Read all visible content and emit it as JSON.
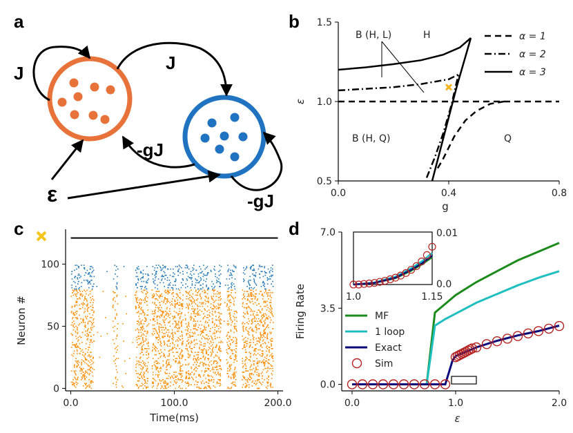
{
  "panels": {
    "a": {
      "letter": "a",
      "labels": {
        "j_self": "J",
        "j_cross": "J",
        "gj_cross": "-gJ",
        "gj_self": "-gJ",
        "epsilon": "ε"
      },
      "colors": {
        "excitatory": "#e8733a",
        "inhibitory": "#1f73c0"
      }
    },
    "b": {
      "letter": "b",
      "regions": {
        "bhl": "B (H, L)",
        "h": "H",
        "bhq": "B (H, Q)",
        "q": "Q"
      },
      "marker_color": "#f5b324"
    },
    "c": {
      "letter": "c",
      "colors": {
        "exc": "#ff8c00",
        "inh": "#1f77b4",
        "marker": "#f5c518"
      }
    },
    "d": {
      "letter": "d",
      "inset": {
        "xticks": [
          "1.0",
          "1.15"
        ],
        "yticks": [
          "0.01",
          "0.0"
        ]
      }
    }
  },
  "chart_data": [
    {
      "id": "panel-b",
      "type": "line",
      "xlabel": "g",
      "ylabel": "ε",
      "xlim": [
        0,
        0.8
      ],
      "ylim": [
        0.5,
        1.5
      ],
      "xticks": [
        0.0,
        0.4,
        0.8
      ],
      "xtick_labels": [
        "0.0",
        "0.4",
        "0.8"
      ],
      "yticks": [
        0.5,
        1.0,
        1.5
      ],
      "ytick_labels": [
        "0.5",
        "1.0",
        "1.5"
      ],
      "legend": [
        {
          "label": "α = 1",
          "style": "dashed"
        },
        {
          "label": "α = 2",
          "style": "dashdot"
        },
        {
          "label": "α = 3",
          "style": "solid"
        }
      ],
      "series": [
        {
          "name": "alpha1-upper",
          "style": "dashed",
          "x": [
            0,
            0.8
          ],
          "y": [
            1.0,
            1.0
          ]
        },
        {
          "name": "alpha1-lower",
          "style": "dashed",
          "x": [
            0.36,
            0.38,
            0.42,
            0.46,
            0.5,
            0.55,
            0.6
          ],
          "y": [
            0.58,
            0.64,
            0.78,
            0.88,
            0.94,
            0.985,
            1.0
          ]
        },
        {
          "name": "alpha2-upper",
          "style": "dashdot",
          "x": [
            0.0,
            0.1,
            0.2,
            0.3,
            0.4,
            0.435
          ],
          "y": [
            1.07,
            1.08,
            1.09,
            1.11,
            1.14,
            1.17
          ]
        },
        {
          "name": "alpha2-lower",
          "style": "dashdot",
          "x": [
            0.32,
            0.35,
            0.38,
            0.41,
            0.435
          ],
          "y": [
            0.52,
            0.65,
            0.8,
            0.98,
            1.17
          ]
        },
        {
          "name": "alpha3-upper",
          "style": "solid",
          "x": [
            0.0,
            0.1,
            0.2,
            0.3,
            0.38,
            0.44,
            0.48
          ],
          "y": [
            1.2,
            1.215,
            1.235,
            1.26,
            1.295,
            1.34,
            1.4
          ]
        },
        {
          "name": "alpha3-lower",
          "style": "solid",
          "x": [
            0.34,
            0.37,
            0.4,
            0.43,
            0.46,
            0.48
          ],
          "y": [
            0.5,
            0.7,
            0.9,
            1.1,
            1.28,
            1.4
          ]
        }
      ],
      "marker": {
        "x": 0.4,
        "y": 1.09,
        "symbol": "x"
      }
    },
    {
      "id": "panel-c",
      "type": "scatter",
      "xlabel": "Time(ms)",
      "ylabel": "Neuron #",
      "xlim": [
        -5,
        205
      ],
      "ylim": [
        -2,
        128
      ],
      "xticks": [
        0,
        100,
        200
      ],
      "xtick_labels": [
        "0.0",
        "100.0",
        "200.0"
      ],
      "yticks": [
        0,
        50,
        100
      ],
      "ytick_labels": [
        "0",
        "50",
        "100"
      ],
      "exc_neurons": [
        0,
        79
      ],
      "inh_neurons": [
        80,
        99
      ],
      "active_windows_ms": [
        [
          0,
          22
        ],
        [
          40,
          45
        ],
        [
          62,
          75
        ],
        [
          78,
          108
        ],
        [
          110,
          145
        ],
        [
          150,
          160
        ],
        [
          165,
          195
        ]
      ],
      "stim_bar": {
        "x": [
          0,
          200
        ],
        "y": 121
      },
      "marker": {
        "x": -33,
        "y": 124
      }
    },
    {
      "id": "panel-d",
      "type": "line",
      "xlabel": "ε",
      "ylabel": "Firing Rate",
      "xlim": [
        -0.1,
        2.0
      ],
      "ylim": [
        -0.3,
        7.0
      ],
      "xticks": [
        0.0,
        1.0,
        2.0
      ],
      "xtick_labels": [
        "0.0",
        "1.0",
        "2.0"
      ],
      "yticks": [
        0.0,
        3.5,
        7.0
      ],
      "ytick_labels": [
        "0.0",
        "3.5",
        "7.0"
      ],
      "legend": [
        {
          "label": "MF",
          "color": "#1a8a1a"
        },
        {
          "label": "1 loop",
          "color": "#1fbfbf"
        },
        {
          "label": "Exact",
          "color": "#0a0a7a"
        },
        {
          "label": "Sim",
          "color": "#b52020"
        }
      ],
      "series": [
        {
          "name": "MF",
          "color": "#1a8a1a",
          "x": [
            0.0,
            0.72,
            0.8,
            0.9,
            1.0,
            1.2,
            1.4,
            1.6,
            1.8,
            2.0
          ],
          "y": [
            0.0,
            0.0,
            3.3,
            3.7,
            4.1,
            4.7,
            5.2,
            5.7,
            6.1,
            6.5
          ]
        },
        {
          "name": "1 loop",
          "color": "#1fbfbf",
          "x": [
            0.0,
            0.72,
            0.8,
            0.9,
            1.0,
            1.2,
            1.4,
            1.6,
            1.8,
            2.0
          ],
          "y": [
            0.0,
            0.0,
            2.7,
            3.0,
            3.25,
            3.75,
            4.15,
            4.55,
            4.9,
            5.2
          ]
        },
        {
          "name": "Exact",
          "color": "#0a0a7a",
          "x": [
            0.0,
            0.9,
            0.97,
            1.0,
            1.2,
            1.4,
            1.6,
            1.8,
            2.0
          ],
          "y": [
            0.0,
            0.0,
            1.1,
            1.3,
            1.7,
            2.0,
            2.25,
            2.45,
            2.7
          ]
        },
        {
          "name": "Sim",
          "color": "#b52020",
          "x": [
            0.0,
            0.1,
            0.2,
            0.3,
            0.4,
            0.5,
            0.6,
            0.7,
            0.8,
            0.9,
            1.0,
            1.02,
            1.04,
            1.06,
            1.08,
            1.1,
            1.12,
            1.14,
            1.16,
            1.2,
            1.3,
            1.4,
            1.5,
            1.6,
            1.7,
            1.8,
            1.9,
            2.0
          ],
          "y": [
            0.0,
            0.0,
            0.0,
            0.0,
            0.0,
            0.0,
            0.0,
            0.0,
            0.0,
            0.0,
            1.25,
            1.3,
            1.35,
            1.4,
            1.45,
            1.5,
            1.55,
            1.6,
            1.65,
            1.7,
            1.85,
            1.98,
            2.1,
            2.22,
            2.34,
            2.45,
            2.56,
            2.68
          ]
        }
      ],
      "inset": {
        "xlim": [
          1.0,
          1.15
        ],
        "ylim": [
          0.0,
          0.01
        ],
        "series": [
          {
            "name": "MF",
            "color": "#1a8a1a",
            "x": [
              1.0,
              1.04,
              1.08,
              1.11,
              1.13,
              1.15
            ],
            "y": [
              0.0,
              0.0003,
              0.0012,
              0.0026,
              0.0038,
              0.0052
            ]
          },
          {
            "name": "1 loop",
            "color": "#1fbfbf",
            "x": [
              1.0,
              1.04,
              1.08,
              1.11,
              1.13,
              1.15
            ],
            "y": [
              0.0,
              0.0004,
              0.0015,
              0.0031,
              0.0044,
              0.006
            ]
          },
          {
            "name": "Exact",
            "color": "#0a0a7a",
            "x": [
              1.0,
              1.04,
              1.08,
              1.11,
              1.13,
              1.15
            ],
            "y": [
              0.0,
              0.0003,
              0.0013,
              0.0028,
              0.004,
              0.0055
            ]
          },
          {
            "name": "Sim",
            "color": "#b52020",
            "x": [
              1.0,
              1.01,
              1.02,
              1.03,
              1.04,
              1.05,
              1.06,
              1.07,
              1.08,
              1.09,
              1.1,
              1.11,
              1.12,
              1.13,
              1.14,
              1.15
            ],
            "y": [
              0.0,
              0.0,
              0.0001,
              0.0002,
              0.0003,
              0.0005,
              0.0007,
              0.001,
              0.0013,
              0.0017,
              0.0022,
              0.0028,
              0.0035,
              0.0044,
              0.0056,
              0.0072
            ]
          }
        ]
      }
    }
  ]
}
